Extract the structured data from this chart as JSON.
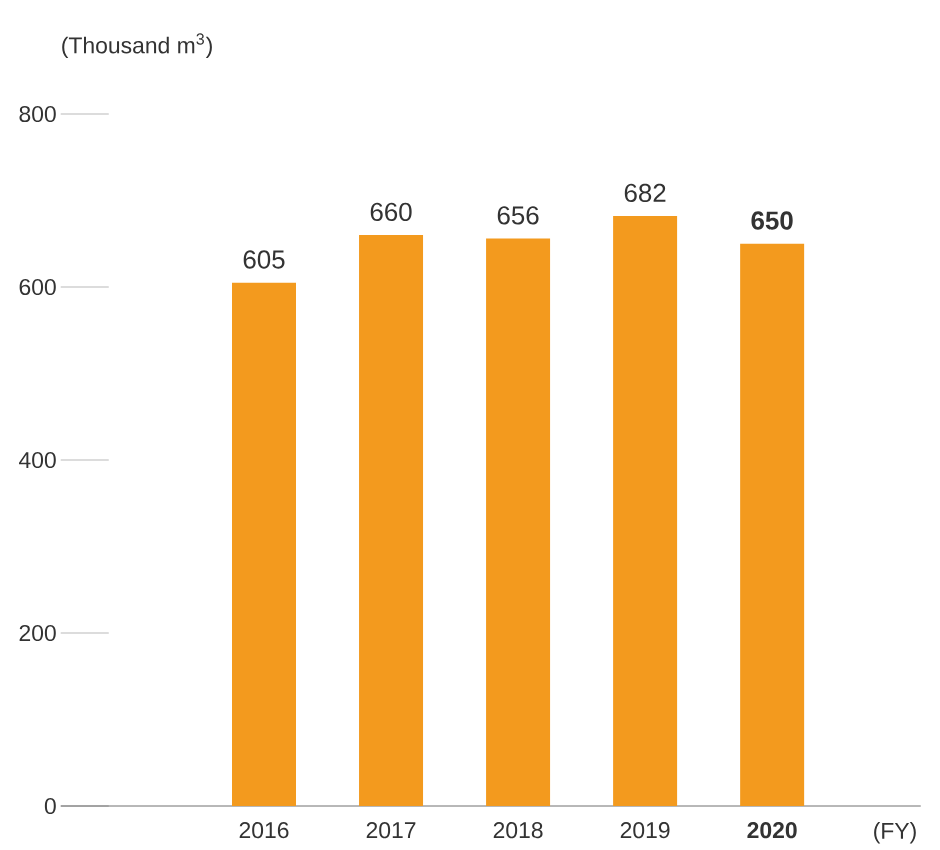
{
  "chart_data": {
    "type": "bar",
    "ylabel": "(Thousand m$^{3}$)",
    "xlabel": "(FY)",
    "categories": [
      "2016",
      "2017",
      "2018",
      "2019",
      "**2020**"
    ],
    "values": [
      605,
      660,
      656,
      682,
      650
    ],
    "value_labels": [
      "605",
      "660",
      "656",
      "682",
      "**650**"
    ],
    "color": "#f39a1e",
    "ylim": [
      0,
      800
    ],
    "yticks": [
      0,
      200,
      400,
      600,
      800
    ],
    "grid": false
  }
}
